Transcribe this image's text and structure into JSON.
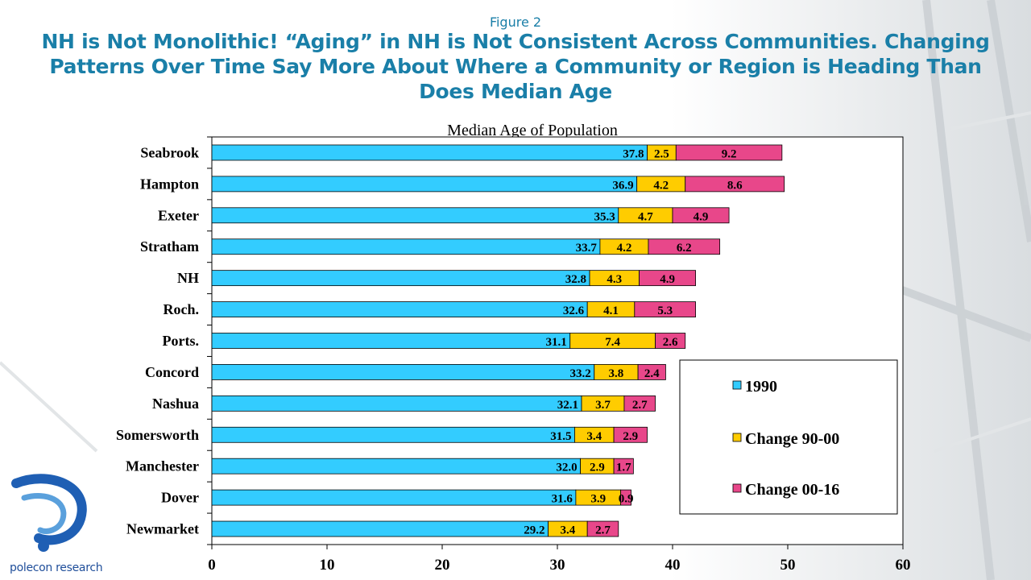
{
  "figure_label": "Figure 2",
  "headline": [
    "NH is Not Monolithic! “Aging” in NH is Not Consistent Across Communities. Changing",
    "Patterns Over Time Say More About Where a Community or Region is Heading Than",
    "Does Median Age"
  ],
  "logo_text": "polecon research",
  "chart_data": {
    "type": "bar",
    "orientation": "horizontal",
    "stacked": true,
    "title": "Median Age of Population",
    "xlabel": "",
    "ylabel": "",
    "xlim": [
      0,
      60
    ],
    "xticks": [
      "0",
      "10",
      "20",
      "30",
      "40",
      "50",
      "60"
    ],
    "grid": false,
    "legend_position": "bottom-right",
    "categories": [
      "Seabrook",
      "Hampton",
      "Exeter",
      "Stratham",
      "NH",
      "Roch.",
      "Ports.",
      "Concord",
      "Nashua",
      "Somersworth",
      "Manchester",
      "Dover",
      "Newmarket"
    ],
    "series": [
      {
        "name": "1990",
        "color": "#33ccff",
        "values": [
          37.8,
          36.9,
          35.3,
          33.7,
          32.8,
          32.6,
          31.1,
          33.2,
          32.1,
          31.5,
          32.0,
          31.6,
          29.2
        ],
        "labels": [
          "37.8",
          "36.9",
          "35.3",
          "33.7",
          "32.8",
          "32.6",
          "31.1",
          "33.2",
          "32.1",
          "31.5",
          "32.0",
          "31.6",
          "29.2"
        ]
      },
      {
        "name": "Change 90-00",
        "color": "#ffcc00",
        "values": [
          2.5,
          4.2,
          4.7,
          4.2,
          4.3,
          4.1,
          7.4,
          3.8,
          3.7,
          3.4,
          2.9,
          3.9,
          3.4
        ],
        "labels": [
          "2.5",
          "4.2",
          "4.7",
          "4.2",
          "4.3",
          "4.1",
          "7.4",
          "3.8",
          "3.7",
          "3.4",
          "2.9",
          "3.9",
          "3.4"
        ]
      },
      {
        "name": "Change 00-16",
        "color": "#e8478a",
        "values": [
          9.2,
          8.6,
          4.9,
          6.2,
          4.9,
          5.3,
          2.6,
          2.4,
          2.7,
          2.9,
          1.7,
          0.9,
          2.7
        ],
        "labels": [
          "9.2",
          "8.6",
          "4.9",
          "6.2",
          "4.9",
          "5.3",
          "2.6",
          "2.4",
          "2.7",
          "2.9",
          "1.7",
          "0.9",
          "2.7"
        ]
      }
    ]
  }
}
